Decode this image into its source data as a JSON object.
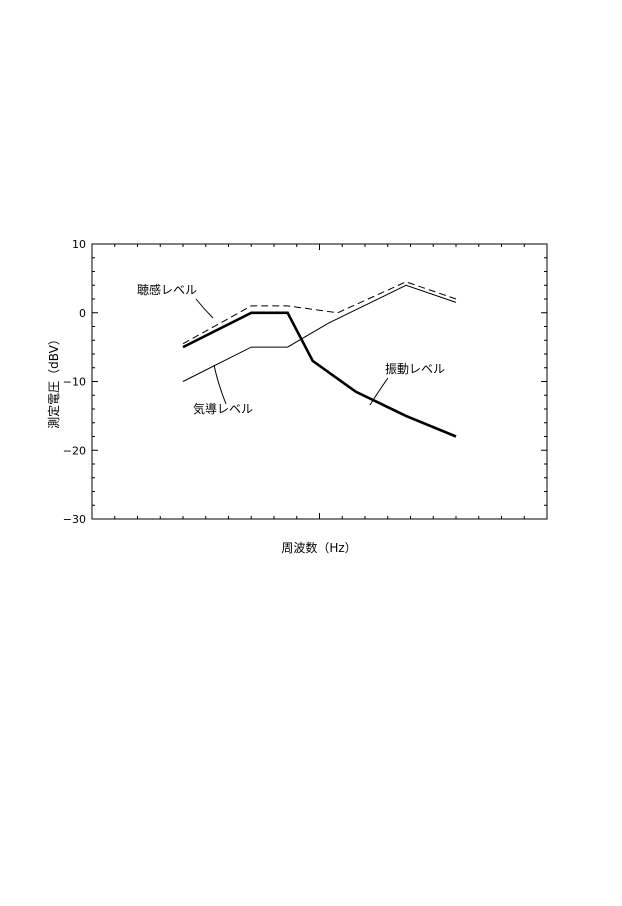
{
  "chart_data": {
    "type": "line",
    "title": "",
    "xlabel": "周波数（Hz）",
    "ylabel": "測定電圧（dBV）",
    "ylim": [
      -30,
      10
    ],
    "yticks": [
      10,
      0,
      -10,
      -20,
      -30
    ],
    "ytick_labels": [
      "10",
      "0",
      "−10",
      "−20",
      "−30"
    ],
    "xlim": [
      0,
      10
    ],
    "grid": false,
    "series": [
      {
        "name": "聴感レベル",
        "style": "dashed",
        "color": "#000000",
        "x": [
          2,
          3.5,
          4.3,
          5.4,
          6.9,
          8.0
        ],
        "y": [
          -4.5,
          1,
          1,
          0,
          4.5,
          2
        ]
      },
      {
        "name": "振動レベル",
        "style": "bold",
        "color": "#000000",
        "x": [
          2,
          3.5,
          4.3,
          4.85,
          5.8,
          6.9,
          8.0
        ],
        "y": [
          -5,
          0,
          0,
          -7,
          -11.5,
          -15,
          -18
        ]
      },
      {
        "name": "気導レベル",
        "style": "thin",
        "color": "#000000",
        "x": [
          2,
          3.5,
          4.3,
          5.2,
          6.9,
          8.0
        ],
        "y": [
          -10,
          -5,
          -5,
          -1.5,
          4,
          1.5
        ]
      }
    ],
    "annotations": [
      {
        "text": "聴感レベル",
        "series": 0
      },
      {
        "text": "振動レベル",
        "series": 1
      },
      {
        "text": "気導レベル",
        "series": 2
      }
    ]
  }
}
